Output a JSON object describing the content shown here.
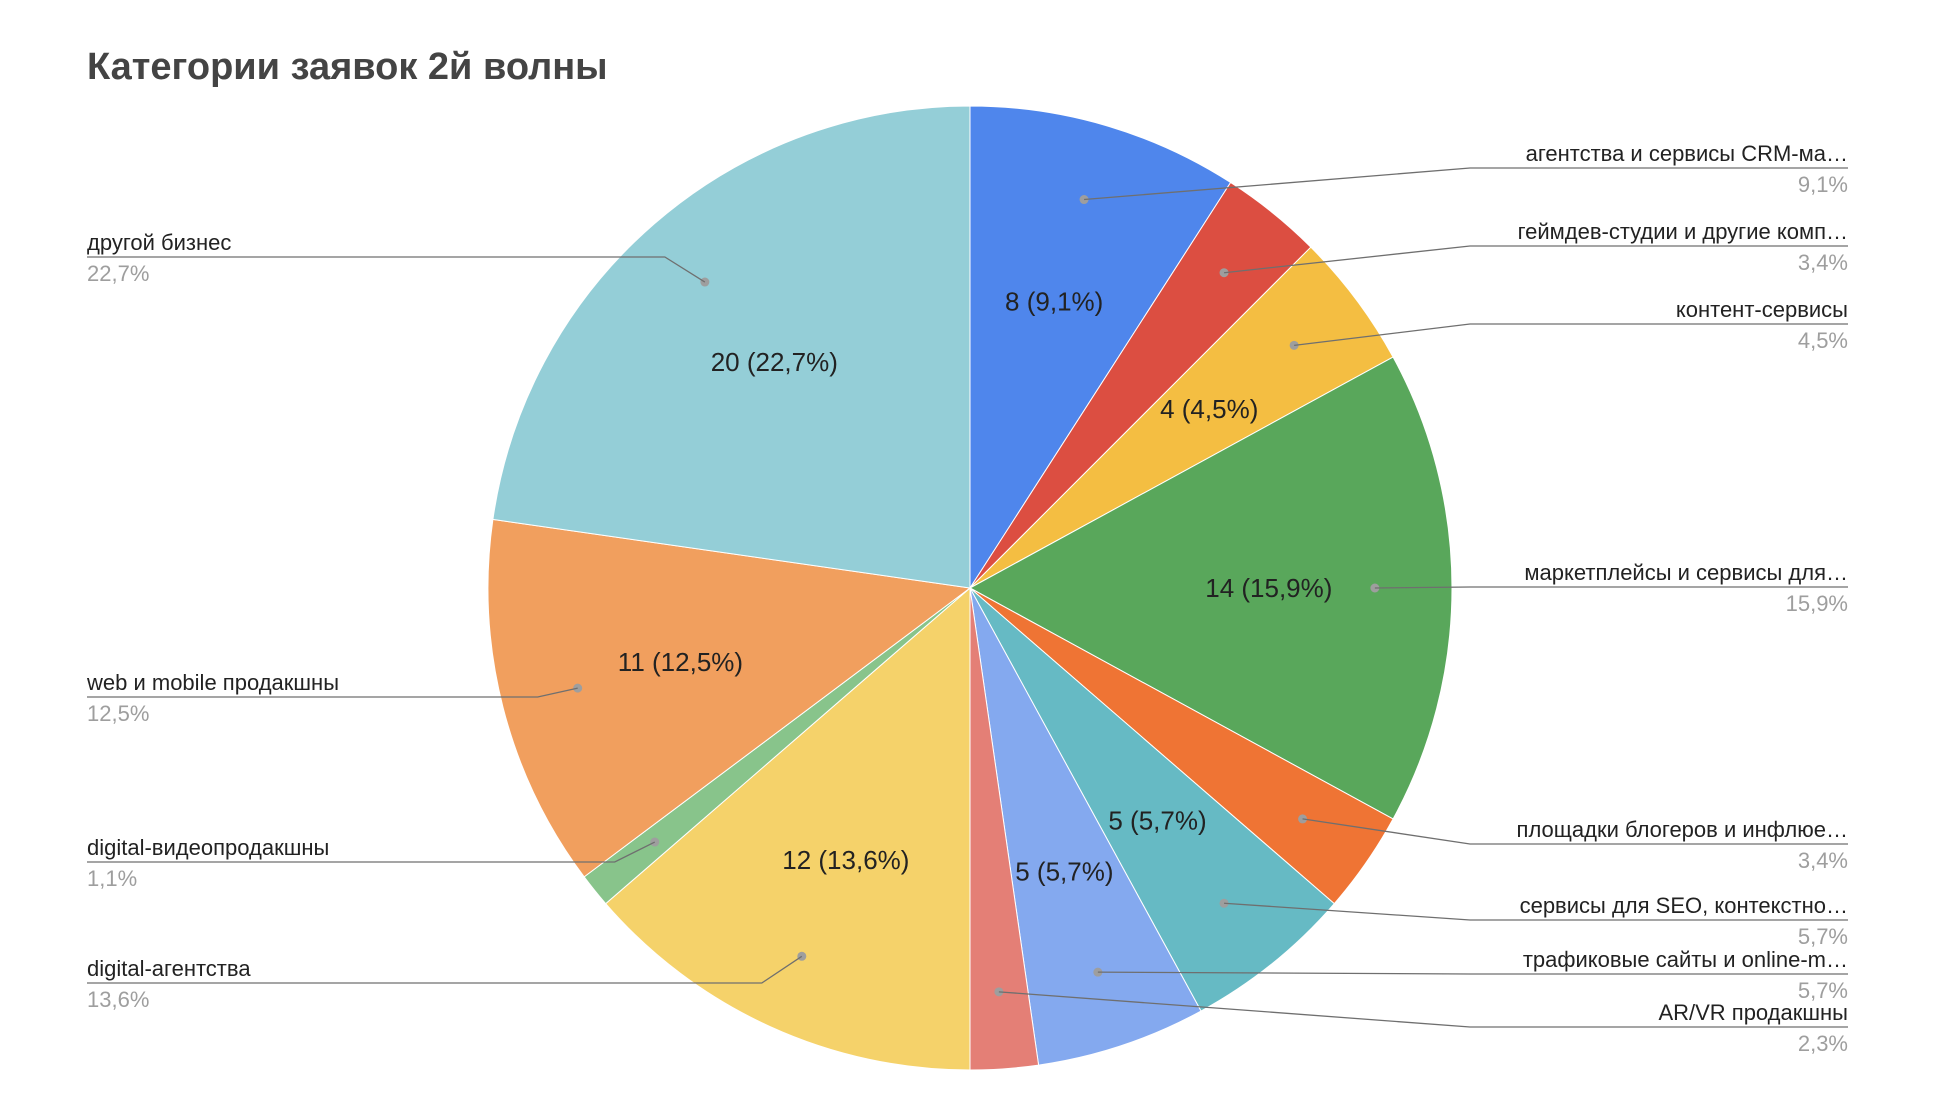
{
  "chart_data": {
    "type": "pie",
    "title": "Категории заявок 2й волны",
    "start_angle_deg": 0,
    "direction": "clockwise",
    "slices": [
      {
        "name": "агентства и сервисы CRM-ма…",
        "value": 8,
        "slice_label": "8 (9,1%)",
        "percent_label": "9,1%",
        "color": "#4f86ec",
        "side": "right"
      },
      {
        "name": "геймдев-студии и другие комп…",
        "value": 3,
        "slice_label": "",
        "percent_label": "3,4%",
        "color": "#dc4e41",
        "side": "right"
      },
      {
        "name": "контент-сервисы",
        "value": 4,
        "slice_label": "4 (4,5%)",
        "percent_label": "4,5%",
        "color": "#f4be42",
        "side": "right"
      },
      {
        "name": "маркетплейсы и сервисы для…",
        "value": 14,
        "slice_label": "14 (15,9%)",
        "percent_label": "15,9%",
        "color": "#59a75b",
        "side": "right"
      },
      {
        "name": "площадки блогеров и инфлюе…",
        "value": 3,
        "slice_label": "",
        "percent_label": "3,4%",
        "color": "#ef7434",
        "side": "right"
      },
      {
        "name": "сервисы для SEO, контекстно…",
        "value": 5,
        "slice_label": "5 (5,7%)",
        "percent_label": "5,7%",
        "color": "#66bac4",
        "side": "right"
      },
      {
        "name": "трафиковые сайты и online-m…",
        "value": 5,
        "slice_label": "5 (5,7%)",
        "percent_label": "5,7%",
        "color": "#84a9ef",
        "side": "right"
      },
      {
        "name": "AR/VR продакшны",
        "value": 2,
        "slice_label": "",
        "percent_label": "2,3%",
        "color": "#e47f76",
        "side": "right"
      },
      {
        "name": "digital-агентства",
        "value": 12,
        "slice_label": "12 (13,6%)",
        "percent_label": "13,6%",
        "color": "#f5d26a",
        "side": "left"
      },
      {
        "name": "digital-видеопродакшны",
        "value": 1,
        "slice_label": "",
        "percent_label": "1,1%",
        "color": "#88c48b",
        "side": "left"
      },
      {
        "name": "web и mobile продакшны",
        "value": 11,
        "slice_label": "11 (12,5%)",
        "percent_label": "12,5%",
        "color": "#f19f5e",
        "side": "left"
      },
      {
        "name": "другой бизнес",
        "value": 20,
        "slice_label": "20 (22,7%)",
        "percent_label": "22,7%",
        "color": "#94ced7",
        "side": "left"
      }
    ]
  }
}
